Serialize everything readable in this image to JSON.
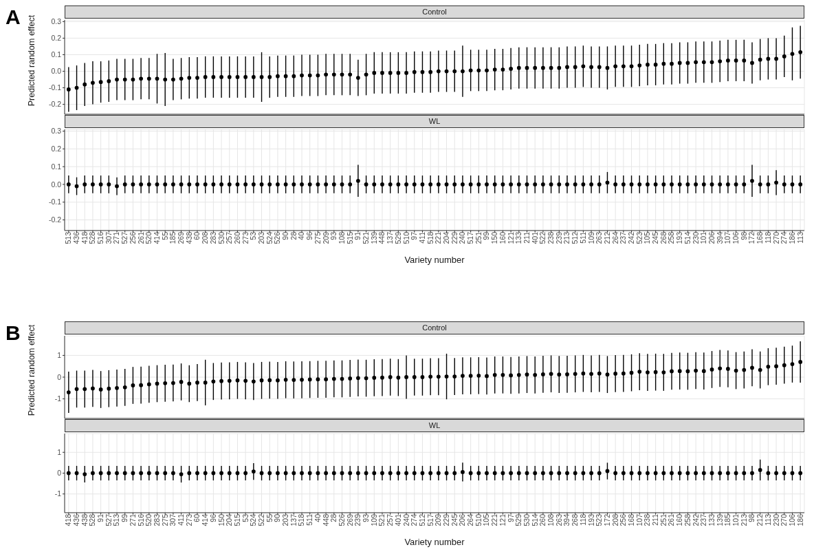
{
  "chart_data": [
    {
      "type": "scatter",
      "title": "Control",
      "annotations": [
        "A"
      ],
      "ylabel": "Predicted random effect",
      "color": "#000000",
      "marker": "circle",
      "grid": true,
      "tick_labels": "y",
      "ylim": [
        -0.26,
        0.31
      ],
      "yticks": [
        -0.2,
        -0.1,
        {
          "value": 0,
          "label": "0.0"
        },
        0.1,
        0.2,
        0.3
      ],
      "categories": [
        "513",
        "436",
        "418",
        "528",
        "516",
        "307",
        "271",
        "527",
        "256",
        "261",
        "520",
        "414",
        "55",
        "185",
        "269",
        "438",
        "60",
        "208",
        "283",
        "530",
        "257",
        "260",
        "273",
        "53",
        "203",
        "524",
        "526",
        "90",
        "28",
        "40",
        "96",
        "275",
        "209",
        "93",
        "108",
        "515",
        "91",
        "521",
        "139",
        "448",
        "137",
        "529",
        "510",
        "97",
        "411",
        "518",
        "221",
        "204",
        "229",
        "240",
        "517",
        "251",
        "99",
        "150",
        "160",
        "121",
        "133",
        "211",
        "401",
        "522",
        "238",
        "239",
        "213",
        "512",
        "511",
        "109",
        "263",
        "212",
        "264",
        "237",
        "242",
        "523",
        "105",
        "245",
        "268",
        "258",
        "193",
        "514",
        "230",
        "101",
        "206",
        "394",
        "107",
        "106",
        "98",
        "172",
        "168",
        "118",
        "270",
        "274",
        "186",
        "113"
      ],
      "values": [
        -0.11,
        -0.1,
        -0.08,
        -0.07,
        -0.065,
        -0.06,
        -0.05,
        -0.05,
        -0.05,
        -0.045,
        -0.045,
        -0.045,
        -0.05,
        -0.05,
        -0.045,
        -0.04,
        -0.04,
        -0.035,
        -0.035,
        -0.035,
        -0.035,
        -0.035,
        -0.035,
        -0.035,
        -0.035,
        -0.035,
        -0.03,
        -0.03,
        -0.03,
        -0.025,
        -0.025,
        -0.025,
        -0.02,
        -0.02,
        -0.02,
        -0.02,
        -0.04,
        -0.02,
        -0.01,
        -0.01,
        -0.01,
        -0.01,
        -0.01,
        -0.005,
        -0.005,
        -0.005,
        0,
        0,
        0,
        0,
        0.005,
        0.005,
        0.005,
        0.01,
        0.01,
        0.015,
        0.02,
        0.02,
        0.02,
        0.02,
        0.02,
        0.02,
        0.025,
        0.025,
        0.03,
        0.025,
        0.025,
        0.02,
        0.03,
        0.03,
        0.03,
        0.035,
        0.04,
        0.04,
        0.045,
        0.045,
        0.05,
        0.05,
        0.055,
        0.055,
        0.055,
        0.06,
        0.065,
        0.065,
        0.065,
        0.05,
        0.07,
        0.075,
        0.075,
        0.09,
        0.105,
        0.115
      ],
      "errors": [
        0.135,
        0.135,
        0.13,
        0.13,
        0.125,
        0.125,
        0.125,
        0.125,
        0.125,
        0.125,
        0.125,
        0.15,
        0.16,
        0.125,
        0.125,
        0.125,
        0.125,
        0.125,
        0.125,
        0.125,
        0.125,
        0.125,
        0.125,
        0.125,
        0.15,
        0.125,
        0.125,
        0.125,
        0.125,
        0.125,
        0.125,
        0.125,
        0.125,
        0.125,
        0.125,
        0.125,
        0.11,
        0.125,
        0.125,
        0.125,
        0.125,
        0.125,
        0.125,
        0.125,
        0.125,
        0.125,
        0.125,
        0.125,
        0.125,
        0.155,
        0.125,
        0.125,
        0.125,
        0.125,
        0.125,
        0.125,
        0.125,
        0.125,
        0.125,
        0.125,
        0.125,
        0.125,
        0.125,
        0.125,
        0.125,
        0.125,
        0.125,
        0.13,
        0.125,
        0.125,
        0.125,
        0.125,
        0.125,
        0.125,
        0.125,
        0.125,
        0.125,
        0.125,
        0.125,
        0.125,
        0.125,
        0.125,
        0.125,
        0.125,
        0.125,
        0.125,
        0.125,
        0.125,
        0.125,
        0.125,
        0.16,
        0.16
      ]
    },
    {
      "type": "scatter",
      "title": "WL",
      "xlabel": "Variety number",
      "color": "#000000",
      "marker": "circle",
      "grid": true,
      "ylim": [
        -0.26,
        0.31
      ],
      "yticks": [
        -0.2,
        -0.1,
        {
          "value": 0,
          "label": "0.0"
        },
        0.1,
        0.2,
        0.3
      ],
      "categories": [
        "513",
        "436",
        "418",
        "528",
        "516",
        "307",
        "271",
        "527",
        "256",
        "261",
        "520",
        "414",
        "55",
        "185",
        "269",
        "438",
        "60",
        "208",
        "283",
        "530",
        "257",
        "260",
        "273",
        "53",
        "203",
        "524",
        "526",
        "90",
        "28",
        "40",
        "96",
        "275",
        "209",
        "93",
        "108",
        "515",
        "91",
        "521",
        "139",
        "448",
        "137",
        "529",
        "510",
        "97",
        "411",
        "518",
        "221",
        "204",
        "229",
        "240",
        "517",
        "251",
        "99",
        "150",
        "160",
        "121",
        "133",
        "211",
        "401",
        "522",
        "238",
        "239",
        "213",
        "512",
        "511",
        "109",
        "263",
        "212",
        "264",
        "237",
        "242",
        "523",
        "105",
        "245",
        "268",
        "258",
        "193",
        "514",
        "230",
        "101",
        "206",
        "394",
        "107",
        "106",
        "98",
        "172",
        "168",
        "118",
        "270",
        "274",
        "186",
        "113"
      ],
      "values": [
        0,
        -0.01,
        0,
        0,
        0,
        0,
        -0.01,
        0,
        0,
        0,
        0,
        0,
        0,
        0,
        0,
        0,
        0,
        0,
        0,
        0,
        0,
        0,
        0,
        0,
        0,
        0,
        0,
        0,
        0,
        0,
        0,
        0,
        0,
        0,
        0,
        0,
        0.02,
        0,
        0,
        0,
        0,
        0,
        0,
        0,
        0,
        0,
        0,
        0,
        0,
        0,
        0,
        0,
        0,
        0,
        0,
        0,
        0,
        0,
        0,
        0,
        0,
        0,
        0,
        0,
        0,
        0,
        0,
        0.01,
        0,
        0,
        0,
        0,
        0,
        0,
        0,
        0,
        0,
        0,
        0,
        0,
        0,
        0,
        0,
        0,
        0,
        0.02,
        0,
        0,
        0.01,
        0,
        0,
        0
      ],
      "errors": [
        0.05,
        0.05,
        0.05,
        0.05,
        0.05,
        0.05,
        0.05,
        0.05,
        0.05,
        0.05,
        0.05,
        0.05,
        0.05,
        0.05,
        0.05,
        0.05,
        0.05,
        0.05,
        0.05,
        0.05,
        0.05,
        0.05,
        0.05,
        0.05,
        0.05,
        0.05,
        0.05,
        0.05,
        0.05,
        0.05,
        0.05,
        0.05,
        0.05,
        0.05,
        0.05,
        0.05,
        0.09,
        0.05,
        0.05,
        0.05,
        0.05,
        0.05,
        0.05,
        0.05,
        0.05,
        0.05,
        0.05,
        0.05,
        0.05,
        0.05,
        0.05,
        0.05,
        0.05,
        0.05,
        0.05,
        0.05,
        0.05,
        0.05,
        0.05,
        0.05,
        0.05,
        0.05,
        0.05,
        0.05,
        0.05,
        0.05,
        0.05,
        0.06,
        0.05,
        0.05,
        0.05,
        0.05,
        0.05,
        0.05,
        0.05,
        0.05,
        0.05,
        0.05,
        0.05,
        0.05,
        0.05,
        0.05,
        0.05,
        0.05,
        0.05,
        0.09,
        0.05,
        0.05,
        0.07,
        0.05,
        0.05,
        0.05
      ]
    },
    {
      "type": "scatter",
      "title": "Control",
      "annotations": [
        "B"
      ],
      "ylabel": "Predicted random effect",
      "color": "#000000",
      "marker": "circle",
      "grid": true,
      "tick_labels": "y",
      "ylim": [
        -1.9,
        1.9
      ],
      "yticks": [
        -1,
        0,
        1
      ],
      "categories": [
        "418",
        "436",
        "438",
        "528",
        "91",
        "527",
        "513",
        "99",
        "271",
        "516",
        "520",
        "283",
        "275",
        "307",
        "411",
        "273",
        "60",
        "414",
        "96",
        "150",
        "204",
        "515",
        "53",
        "524",
        "522",
        "55",
        "90",
        "203",
        "137",
        "518",
        "511",
        "40",
        "448",
        "28",
        "526",
        "269",
        "239",
        "93",
        "109",
        "521",
        "257",
        "401",
        "240",
        "274",
        "512",
        "517",
        "209",
        "229",
        "245",
        "206",
        "264",
        "510",
        "105",
        "221",
        "121",
        "97",
        "529",
        "530",
        "514",
        "260",
        "108",
        "263",
        "394",
        "268",
        "118",
        "193",
        "523",
        "172",
        "208",
        "256",
        "168",
        "107",
        "238",
        "211",
        "251",
        "261",
        "160",
        "258",
        "242",
        "237",
        "133",
        "139",
        "185",
        "101",
        "213",
        "98",
        "212",
        "113",
        "230",
        "270",
        "106",
        "186"
      ],
      "values": [
        -0.7,
        -0.55,
        -0.55,
        -0.52,
        -0.57,
        -0.53,
        -0.5,
        -0.47,
        -0.38,
        -0.37,
        -0.33,
        -0.3,
        -0.28,
        -0.27,
        -0.22,
        -0.3,
        -0.25,
        -0.25,
        -0.2,
        -0.18,
        -0.17,
        -0.15,
        -0.17,
        -0.2,
        -0.15,
        -0.14,
        -0.15,
        -0.12,
        -0.13,
        -0.12,
        -0.11,
        -0.1,
        -0.1,
        -0.08,
        -0.08,
        -0.06,
        -0.04,
        -0.05,
        -0.03,
        -0.02,
        0,
        -0.02,
        0,
        0,
        0,
        0.02,
        0.02,
        0.03,
        0.03,
        0.06,
        0.06,
        0.07,
        0.05,
        0.1,
        0.1,
        0.08,
        0.1,
        0.12,
        0.1,
        0.13,
        0.15,
        0.12,
        0.13,
        0.15,
        0.17,
        0.15,
        0.17,
        0.12,
        0.16,
        0.17,
        0.2,
        0.25,
        0.22,
        0.23,
        0.22,
        0.27,
        0.28,
        0.27,
        0.3,
        0.28,
        0.35,
        0.4,
        0.38,
        0.3,
        0.33,
        0.43,
        0.33,
        0.48,
        0.5,
        0.55,
        0.6,
        0.7
      ],
      "errors": [
        0.95,
        0.85,
        0.85,
        0.85,
        0.85,
        0.85,
        0.85,
        0.85,
        0.85,
        0.85,
        0.85,
        0.85,
        0.85,
        0.85,
        0.85,
        0.85,
        0.85,
        1.05,
        0.85,
        0.85,
        0.85,
        0.85,
        0.85,
        0.85,
        0.85,
        0.85,
        0.85,
        0.85,
        0.85,
        0.85,
        0.85,
        0.85,
        0.85,
        0.85,
        0.85,
        0.85,
        0.85,
        0.85,
        0.85,
        0.85,
        0.85,
        0.85,
        1.0,
        0.85,
        0.85,
        0.85,
        0.85,
        1.05,
        0.85,
        0.85,
        0.85,
        0.85,
        0.85,
        0.85,
        0.85,
        0.85,
        0.85,
        0.85,
        0.85,
        0.85,
        0.85,
        0.85,
        0.85,
        0.85,
        0.85,
        0.85,
        0.85,
        0.85,
        0.85,
        0.85,
        0.85,
        0.85,
        0.85,
        0.85,
        0.85,
        0.85,
        0.85,
        0.85,
        0.85,
        0.85,
        0.85,
        0.85,
        0.85,
        0.85,
        0.85,
        0.85,
        0.85,
        0.85,
        0.85,
        0.85,
        0.85,
        0.95
      ]
    },
    {
      "type": "scatter",
      "title": "WL",
      "xlabel": "Variety number",
      "color": "#000000",
      "marker": "circle",
      "grid": true,
      "ylim": [
        -1.9,
        1.9
      ],
      "yticks": [
        -1,
        0,
        1
      ],
      "categories": [
        "418",
        "436",
        "438",
        "528",
        "91",
        "527",
        "513",
        "99",
        "271",
        "516",
        "520",
        "283",
        "275",
        "307",
        "411",
        "273",
        "60",
        "414",
        "96",
        "150",
        "204",
        "515",
        "53",
        "524",
        "522",
        "55",
        "90",
        "203",
        "137",
        "518",
        "511",
        "40",
        "448",
        "28",
        "526",
        "269",
        "239",
        "93",
        "109",
        "521",
        "257",
        "401",
        "240",
        "274",
        "512",
        "517",
        "209",
        "229",
        "245",
        "206",
        "264",
        "510",
        "105",
        "221",
        "121",
        "97",
        "529",
        "530",
        "514",
        "260",
        "108",
        "263",
        "394",
        "268",
        "118",
        "193",
        "523",
        "172",
        "208",
        "256",
        "168",
        "107",
        "238",
        "211",
        "251",
        "261",
        "160",
        "258",
        "242",
        "237",
        "133",
        "139",
        "185",
        "101",
        "213",
        "98",
        "212",
        "113",
        "230",
        "270",
        "106",
        "186"
      ],
      "values": [
        0,
        0,
        -0.05,
        0,
        0,
        0,
        0,
        0,
        0,
        0,
        0,
        0,
        0,
        0,
        -0.05,
        0,
        0,
        0,
        0,
        0,
        0,
        0,
        0,
        0.08,
        0,
        0,
        0,
        0,
        0,
        0,
        0,
        0,
        0,
        0,
        0,
        0,
        0,
        0,
        0,
        0,
        0,
        0,
        0,
        0,
        0,
        0,
        0,
        0,
        0,
        0.05,
        0,
        0,
        0,
        0,
        0,
        0,
        0,
        0,
        0,
        0,
        0,
        0,
        0,
        0,
        0,
        0,
        0,
        0.1,
        0,
        0,
        0,
        0,
        0,
        0,
        0,
        0,
        0,
        0,
        0,
        0,
        0,
        0,
        0,
        0,
        0,
        0,
        0.15,
        0,
        0,
        0,
        0,
        0
      ],
      "errors": [
        0.35,
        0.35,
        0.4,
        0.35,
        0.35,
        0.35,
        0.35,
        0.35,
        0.35,
        0.35,
        0.35,
        0.35,
        0.35,
        0.35,
        0.4,
        0.35,
        0.35,
        0.35,
        0.35,
        0.35,
        0.35,
        0.35,
        0.35,
        0.4,
        0.35,
        0.35,
        0.35,
        0.35,
        0.35,
        0.35,
        0.35,
        0.35,
        0.35,
        0.35,
        0.35,
        0.35,
        0.35,
        0.35,
        0.35,
        0.35,
        0.35,
        0.35,
        0.35,
        0.35,
        0.35,
        0.35,
        0.35,
        0.35,
        0.35,
        0.45,
        0.35,
        0.35,
        0.35,
        0.35,
        0.35,
        0.35,
        0.35,
        0.35,
        0.35,
        0.35,
        0.35,
        0.35,
        0.35,
        0.35,
        0.35,
        0.35,
        0.35,
        0.4,
        0.35,
        0.35,
        0.35,
        0.35,
        0.35,
        0.35,
        0.35,
        0.35,
        0.35,
        0.35,
        0.35,
        0.35,
        0.35,
        0.35,
        0.35,
        0.35,
        0.35,
        0.35,
        0.5,
        0.35,
        0.35,
        0.35,
        0.35,
        0.35
      ]
    }
  ]
}
